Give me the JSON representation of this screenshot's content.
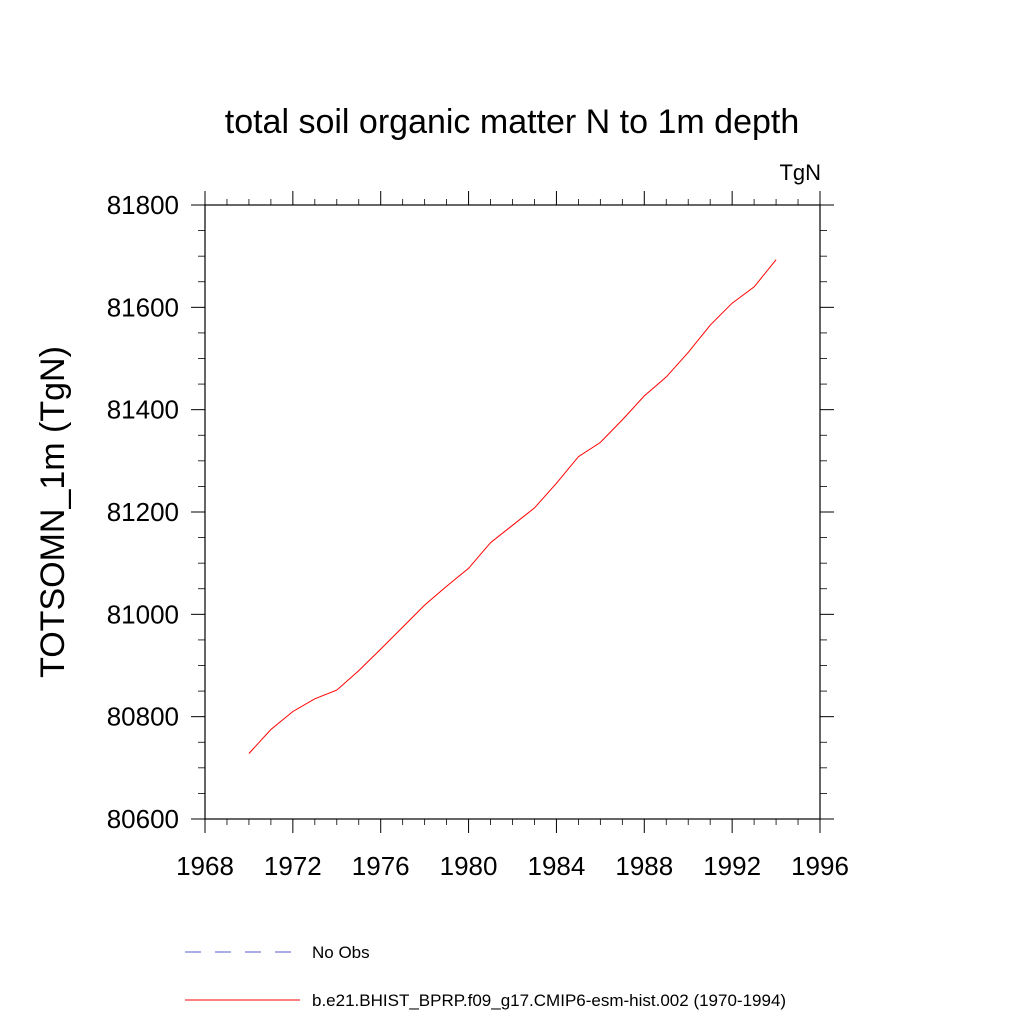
{
  "chart_data": {
    "type": "line",
    "title": "total soil organic matter N to 1m depth",
    "units_label": "TgN",
    "ylabel": "TOTSOMN_1m  (TgN)",
    "xlabel": "",
    "xlim": [
      1968,
      1996
    ],
    "ylim": [
      80600,
      81800
    ],
    "x_ticks": [
      1968,
      1972,
      1976,
      1980,
      1984,
      1988,
      1992,
      1996
    ],
    "y_ticks": [
      80600,
      80800,
      81000,
      81200,
      81400,
      81600,
      81800
    ],
    "grid": false,
    "legend_placement": "bottom",
    "series": [
      {
        "name": "b.e21.BHIST_BPRP.f09_g17.CMIP6-esm-hist.002 (1970-1994)",
        "color": "#ff0000",
        "style": "solid",
        "x": [
          1970,
          1971,
          1972,
          1973,
          1974,
          1975,
          1976,
          1977,
          1978,
          1979,
          1980,
          1981,
          1982,
          1983,
          1984,
          1985,
          1986,
          1987,
          1988,
          1989,
          1990,
          1991,
          1992,
          1993,
          1994
        ],
        "y": [
          80728,
          80775,
          80810,
          80835,
          80852,
          80890,
          80932,
          80975,
          81018,
          81055,
          81090,
          81140,
          81174,
          81208,
          81256,
          81308,
          81336,
          81380,
          81427,
          81464,
          81512,
          81565,
          81608,
          81640,
          81693
        ]
      }
    ],
    "legend": [
      {
        "label": "No Obs",
        "color": "#5a5acd",
        "style": "dashed"
      },
      {
        "label": "b.e21.BHIST_BPRP.f09_g17.CMIP6-esm-hist.002 (1970-1994)",
        "color": "#ff0000",
        "style": "solid"
      }
    ]
  }
}
